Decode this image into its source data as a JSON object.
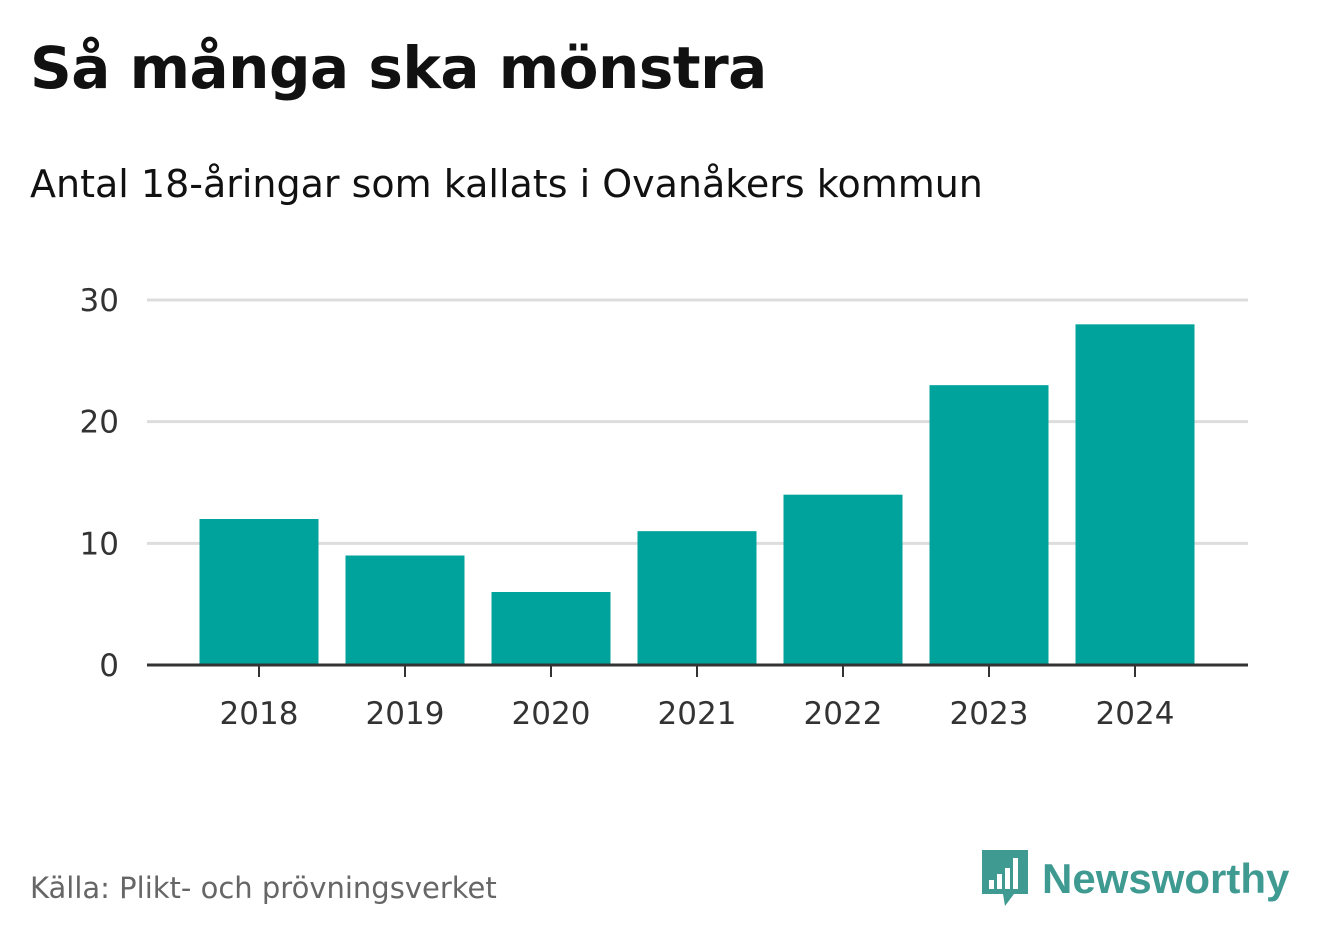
{
  "title": "Så många ska mönstra",
  "subtitle": "Antal 18-åringar som kallats i Ovanåkers kommun",
  "source": "Källa: Plikt- och prövningsverket",
  "brand": {
    "name": "Newsworthy",
    "icon": "newsworthy-logo-icon",
    "color": "#3f9a92"
  },
  "colors": {
    "bar": "#00a39b",
    "grid": "#dddddd",
    "axis": "#333333"
  },
  "chart_data": {
    "type": "bar",
    "title": "Så många ska mönstra",
    "subtitle": "Antal 18-åringar som kallats i Ovanåkers kommun",
    "categories": [
      "2018",
      "2019",
      "2020",
      "2021",
      "2022",
      "2023",
      "2024"
    ],
    "values": [
      12,
      9,
      6,
      11,
      14,
      23,
      28
    ],
    "xlabel": "",
    "ylabel": "",
    "ylim": [
      0,
      30
    ],
    "yticks": [
      0,
      10,
      20,
      30
    ],
    "grid": true
  }
}
